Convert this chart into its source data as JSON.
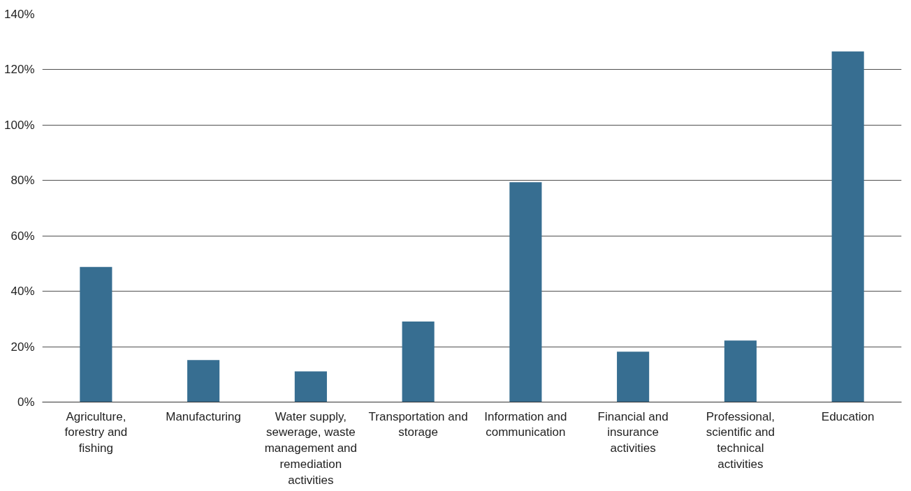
{
  "chart_data": {
    "type": "bar",
    "categories": [
      "Agriculture, forestry and fishing",
      "Manufacturing",
      "Water supply, sewerage, waste management and remediation activities",
      "Transportation and storage",
      "Information and communication",
      "Financial and insurance activities",
      "Professional, scientific and technical activities",
      "Education"
    ],
    "values": [
      48.8,
      15.2,
      11.1,
      29.1,
      79.4,
      18.2,
      22.2,
      126.6
    ],
    "color": "#376e91",
    "ylim": [
      0,
      140
    ],
    "yticks": [
      {
        "value": 0,
        "label": "0%"
      },
      {
        "value": 20,
        "label": "20%"
      },
      {
        "value": 40,
        "label": "40%"
      },
      {
        "value": 60,
        "label": "60%"
      },
      {
        "value": 80,
        "label": "80%"
      },
      {
        "value": 100,
        "label": "100%"
      },
      {
        "value": 120,
        "label": "120%"
      },
      {
        "value": 140,
        "label": "140%"
      }
    ],
    "grid": "y"
  }
}
